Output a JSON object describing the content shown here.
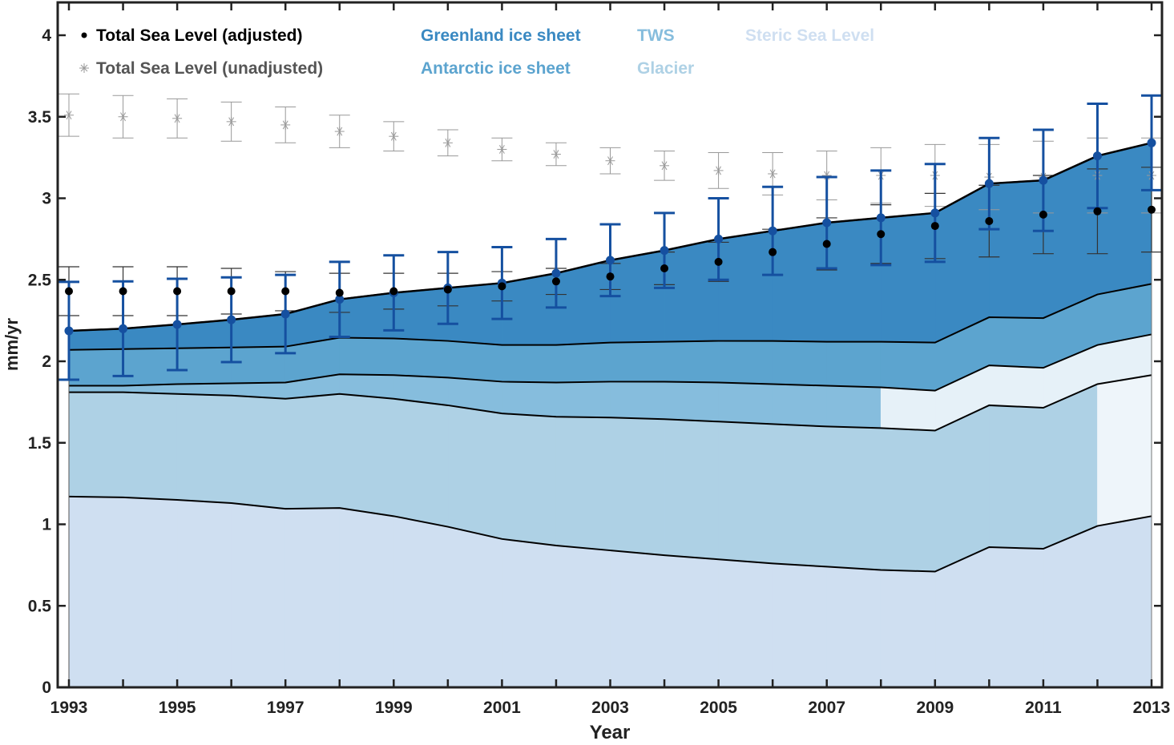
{
  "chart_data": {
    "type": "area",
    "xlabel": "Year",
    "ylabel": "mm/yr",
    "xlim": [
      1993,
      2013
    ],
    "ylim": [
      0,
      4.2
    ],
    "xticks": [
      1993,
      1995,
      1997,
      1999,
      2001,
      2003,
      2005,
      2007,
      2009,
      2011,
      2013
    ],
    "yticks": [
      0,
      0.5,
      1,
      1.5,
      2,
      2.5,
      3,
      3.5,
      4
    ],
    "ytick_labels": [
      "0",
      "0.5",
      "1",
      "1.5",
      "2",
      "2.5",
      "3",
      "3.5",
      "4"
    ],
    "grid": false,
    "legend_placement": "top",
    "x": [
      1993,
      1994,
      1995,
      1996,
      1997,
      1998,
      1999,
      2000,
      2001,
      2002,
      2003,
      2004,
      2005,
      2006,
      2007,
      2008,
      2009,
      2010,
      2011,
      2012,
      2013
    ],
    "stacked_components": [
      {
        "name": "Steric Sea Level",
        "color": "#cfdff1",
        "values": [
          1.17,
          1.165,
          1.15,
          1.13,
          1.095,
          1.1,
          1.05,
          0.985,
          0.91,
          0.87,
          0.84,
          0.81,
          0.785,
          0.76,
          0.74,
          0.72,
          0.71,
          0.86,
          0.85,
          0.99,
          1.05
        ]
      },
      {
        "name": "Glacier",
        "color": "#aed1e5",
        "values": [
          0.64,
          0.645,
          0.65,
          0.66,
          0.675,
          0.7,
          0.72,
          0.745,
          0.77,
          0.79,
          0.815,
          0.835,
          0.845,
          0.855,
          0.86,
          0.87,
          0.865,
          0.87,
          0.865,
          0.87,
          0.865
        ]
      },
      {
        "name": "TWS",
        "color": "#86bddd",
        "values": [
          0.04,
          0.04,
          0.06,
          0.075,
          0.1,
          0.12,
          0.145,
          0.17,
          0.195,
          0.21,
          0.22,
          0.23,
          0.24,
          0.245,
          0.25,
          0.25,
          0.245,
          0.245,
          0.245,
          0.24,
          0.25
        ]
      },
      {
        "name": "Antarctic ice sheet",
        "color": "#5ca4cf",
        "values": [
          0.22,
          0.225,
          0.22,
          0.22,
          0.22,
          0.225,
          0.225,
          0.225,
          0.225,
          0.23,
          0.24,
          0.245,
          0.255,
          0.265,
          0.27,
          0.28,
          0.295,
          0.295,
          0.305,
          0.31,
          0.31
        ]
      },
      {
        "name": "Greenland ice sheet",
        "color": "#3a89c2",
        "values": [
          0.117,
          0.125,
          0.146,
          0.17,
          0.2,
          0.235,
          0.28,
          0.325,
          0.38,
          0.44,
          0.505,
          0.56,
          0.625,
          0.675,
          0.73,
          0.76,
          0.795,
          0.82,
          0.845,
          0.85,
          0.865
        ]
      }
    ],
    "total_budget": {
      "color": "#1550a0",
      "values": [
        2.187,
        2.2,
        2.226,
        2.255,
        2.29,
        2.38,
        2.42,
        2.45,
        2.48,
        2.54,
        2.62,
        2.68,
        2.75,
        2.8,
        2.85,
        2.88,
        2.91,
        3.09,
        3.11,
        3.26,
        3.34
      ],
      "error": [
        0.3,
        0.29,
        0.28,
        0.26,
        0.24,
        0.23,
        0.23,
        0.22,
        0.22,
        0.21,
        0.22,
        0.23,
        0.25,
        0.27,
        0.28,
        0.29,
        0.3,
        0.28,
        0.31,
        0.32,
        0.29
      ]
    },
    "series": [
      {
        "name": "Total Sea Level (adjusted)",
        "color": "#000000",
        "marker": "dot",
        "values": [
          2.43,
          2.43,
          2.43,
          2.43,
          2.43,
          2.42,
          2.43,
          2.44,
          2.46,
          2.49,
          2.52,
          2.57,
          2.61,
          2.67,
          2.72,
          2.78,
          2.83,
          2.86,
          2.9,
          2.92,
          2.93
        ],
        "error": [
          0.15,
          0.15,
          0.15,
          0.14,
          0.12,
          0.12,
          0.11,
          0.1,
          0.09,
          0.08,
          0.08,
          0.1,
          0.12,
          0.14,
          0.16,
          0.18,
          0.2,
          0.22,
          0.24,
          0.26,
          0.26
        ]
      },
      {
        "name": "Total Sea Level (unadjusted)",
        "color": "#8a8a8a",
        "marker": "star",
        "values": [
          3.51,
          3.5,
          3.49,
          3.47,
          3.45,
          3.41,
          3.38,
          3.34,
          3.3,
          3.27,
          3.23,
          3.2,
          3.17,
          3.15,
          3.14,
          3.14,
          3.14,
          3.13,
          3.13,
          3.14,
          3.14
        ],
        "error": [
          0.13,
          0.13,
          0.12,
          0.12,
          0.11,
          0.1,
          0.09,
          0.08,
          0.07,
          0.07,
          0.08,
          0.09,
          0.11,
          0.13,
          0.15,
          0.17,
          0.19,
          0.2,
          0.22,
          0.23,
          0.23
        ]
      }
    ],
    "legend": [
      {
        "label": "Total Sea Level (adjusted)",
        "color": "#000000",
        "marker": "dot"
      },
      {
        "label": "Total Sea Level (unadjusted)",
        "color": "#555555",
        "marker": "star"
      },
      {
        "label": "Greenland ice sheet",
        "color": "#3a89c2"
      },
      {
        "label": "Antarctic ice sheet",
        "color": "#5ca4cf"
      },
      {
        "label": "TWS",
        "color": "#86bddd"
      },
      {
        "label": "Glacier",
        "color": "#aed1e5"
      },
      {
        "label": "Steric Sea Level",
        "color": "#cfdff1"
      }
    ]
  }
}
